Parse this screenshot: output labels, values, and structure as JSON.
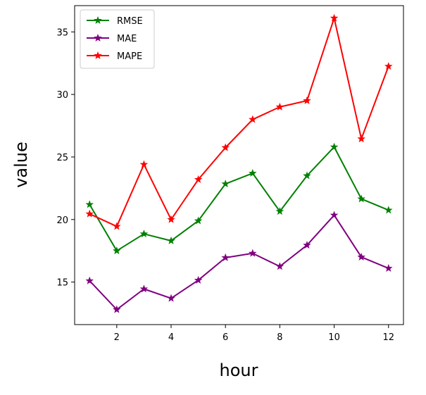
{
  "chart_data": {
    "type": "line",
    "title": "",
    "xlabel": "hour",
    "ylabel": "value",
    "x": [
      1,
      2,
      3,
      4,
      5,
      6,
      7,
      8,
      9,
      10,
      11,
      12
    ],
    "xticks": [
      2,
      4,
      6,
      8,
      10,
      12
    ],
    "yticks": [
      15,
      20,
      25,
      30,
      35
    ],
    "xlim": [
      0.45,
      12.55
    ],
    "ylim": [
      11.6,
      37.1
    ],
    "grid": false,
    "legend_position": "top-left",
    "marker": "star",
    "series": [
      {
        "name": "RMSE",
        "color": "#008000",
        "values": [
          21.2,
          17.5,
          18.85,
          18.3,
          19.9,
          22.85,
          23.7,
          20.65,
          23.5,
          25.8,
          21.65,
          20.75
        ]
      },
      {
        "name": "MAE",
        "color": "#800080",
        "values": [
          15.1,
          12.8,
          14.45,
          13.7,
          15.15,
          16.95,
          17.3,
          16.25,
          17.95,
          20.35,
          17.0,
          16.1
        ]
      },
      {
        "name": "MAPE",
        "color": "#ff0000",
        "values": [
          20.45,
          19.45,
          24.4,
          20.0,
          23.2,
          25.75,
          28.0,
          29.0,
          29.5,
          36.1,
          26.45,
          32.25
        ]
      }
    ]
  }
}
